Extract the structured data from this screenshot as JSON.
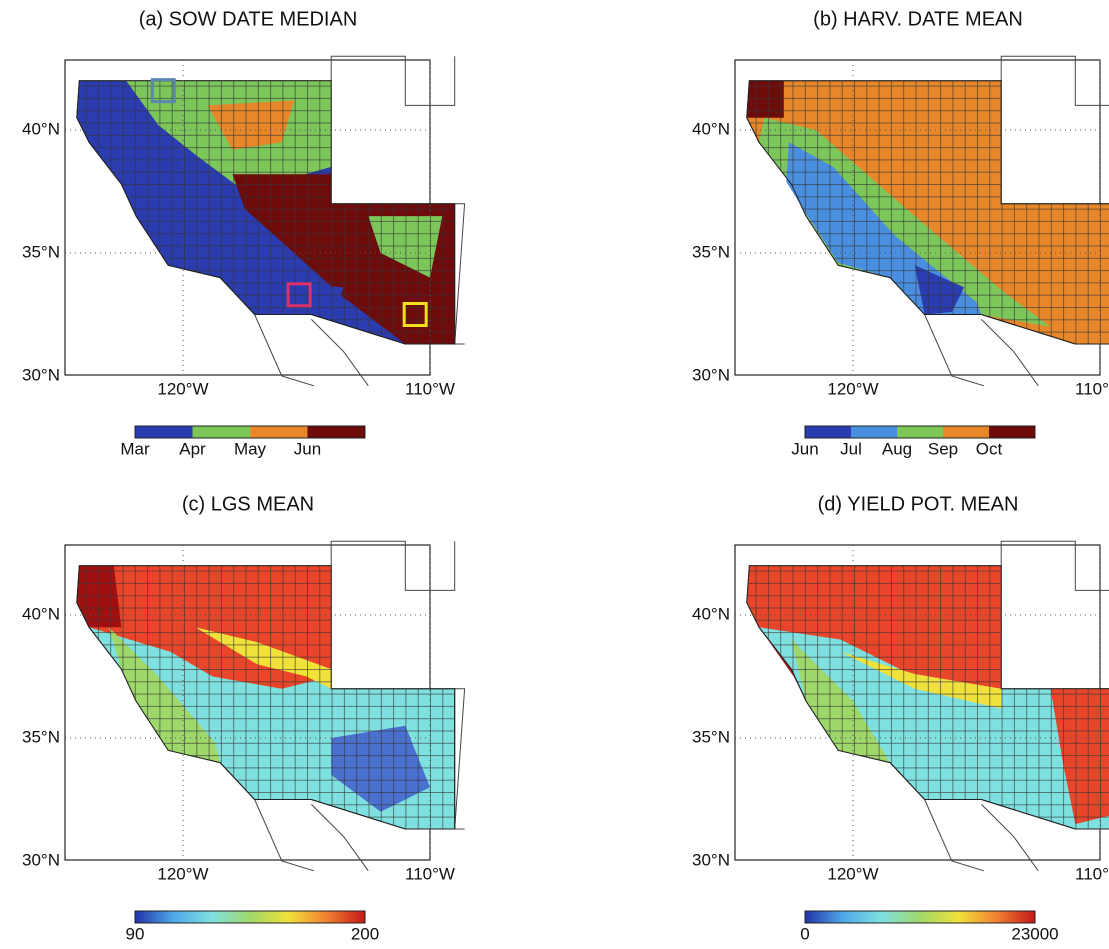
{
  "panels": [
    {
      "title": "(a) SOW DATE MEDIAN",
      "lat_labels": [
        "40°N",
        "35°N",
        "30°N"
      ],
      "lon_labels": [
        "120°W",
        "110°W"
      ],
      "colorbar": {
        "kind": "discrete",
        "colors": [
          "#2a3cb0",
          "#7cc65a",
          "#e8872a",
          "#6e0b0b"
        ],
        "labels": [
          "Mar",
          "Apr",
          "May",
          "Jun"
        ]
      }
    },
    {
      "title": "(b) HARV. DATE MEAN",
      "lat_labels": [
        "40°N",
        "35°N",
        "30°N"
      ],
      "lon_labels": [
        "120°W",
        "110°W"
      ],
      "colorbar": {
        "kind": "discrete",
        "colors": [
          "#2a3cb0",
          "#4a8ee0",
          "#7cc65a",
          "#e8872a",
          "#6e0b0b"
        ],
        "labels": [
          "Jun",
          "Jul",
          "Aug",
          "Sep",
          "Oct"
        ]
      }
    },
    {
      "title": "(c) LGS MEAN",
      "lat_labels": [
        "40°N",
        "35°N",
        "30°N"
      ],
      "lon_labels": [
        "120°W",
        "110°W"
      ],
      "colorbar": {
        "kind": "continuous",
        "colors": [
          "#2233aa",
          "#4fa8e8",
          "#7fe0e0",
          "#9ed86a",
          "#f0e23a",
          "#f08030",
          "#c41818"
        ],
        "ticks": [
          90,
          200
        ]
      }
    },
    {
      "title": "(d) YIELD POT. MEAN",
      "lat_labels": [
        "40°N",
        "35°N",
        "30°N"
      ],
      "lon_labels": [
        "120°W",
        "110°W"
      ],
      "colorbar": {
        "kind": "continuous",
        "colors": [
          "#2233aa",
          "#4fa8e8",
          "#7fe0e0",
          "#9ed86a",
          "#f0e23a",
          "#f08030",
          "#c41818"
        ],
        "ticks": [
          0,
          23000
        ]
      }
    }
  ]
}
